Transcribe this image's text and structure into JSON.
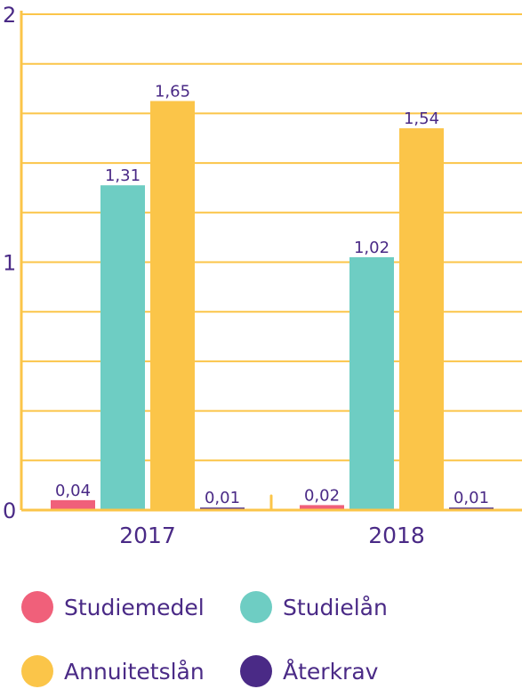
{
  "chart_data": {
    "type": "bar",
    "categories": [
      "2017",
      "2018"
    ],
    "series": [
      {
        "name": "Studiemedel",
        "values": [
          0.04,
          0.02
        ],
        "labels": [
          "0,04",
          "0,02"
        ],
        "color": "#f0607a"
      },
      {
        "name": "Studielån",
        "values": [
          1.31,
          1.02
        ],
        "labels": [
          "1,31",
          "1,02"
        ],
        "color": "#6ecdc3"
      },
      {
        "name": "Annuitetslån",
        "values": [
          1.65,
          1.54
        ],
        "labels": [
          "1,65",
          "1,54"
        ],
        "color": "#fbc549"
      },
      {
        "name": "Återkrav",
        "values": [
          0.01,
          0.01
        ],
        "labels": [
          "0,01",
          "0,01"
        ],
        "color": "#4a2a86"
      }
    ],
    "ylim": [
      0,
      2
    ],
    "yticks": [
      {
        "value": 0,
        "label": "0"
      },
      {
        "value": 1,
        "label": "1"
      },
      {
        "value": 2,
        "label": "2"
      }
    ],
    "grid": true,
    "legend": "bottom",
    "axis_color": "#fbc549",
    "text_color": "#4a2a86"
  },
  "legend": {
    "items": [
      {
        "label": "Studiemedel",
        "color": "#f0607a"
      },
      {
        "label": "Studielån",
        "color": "#6ecdc3"
      },
      {
        "label": "Annuitetslån",
        "color": "#fbc549"
      },
      {
        "label": "Återkrav",
        "color": "#4a2a86"
      }
    ]
  }
}
